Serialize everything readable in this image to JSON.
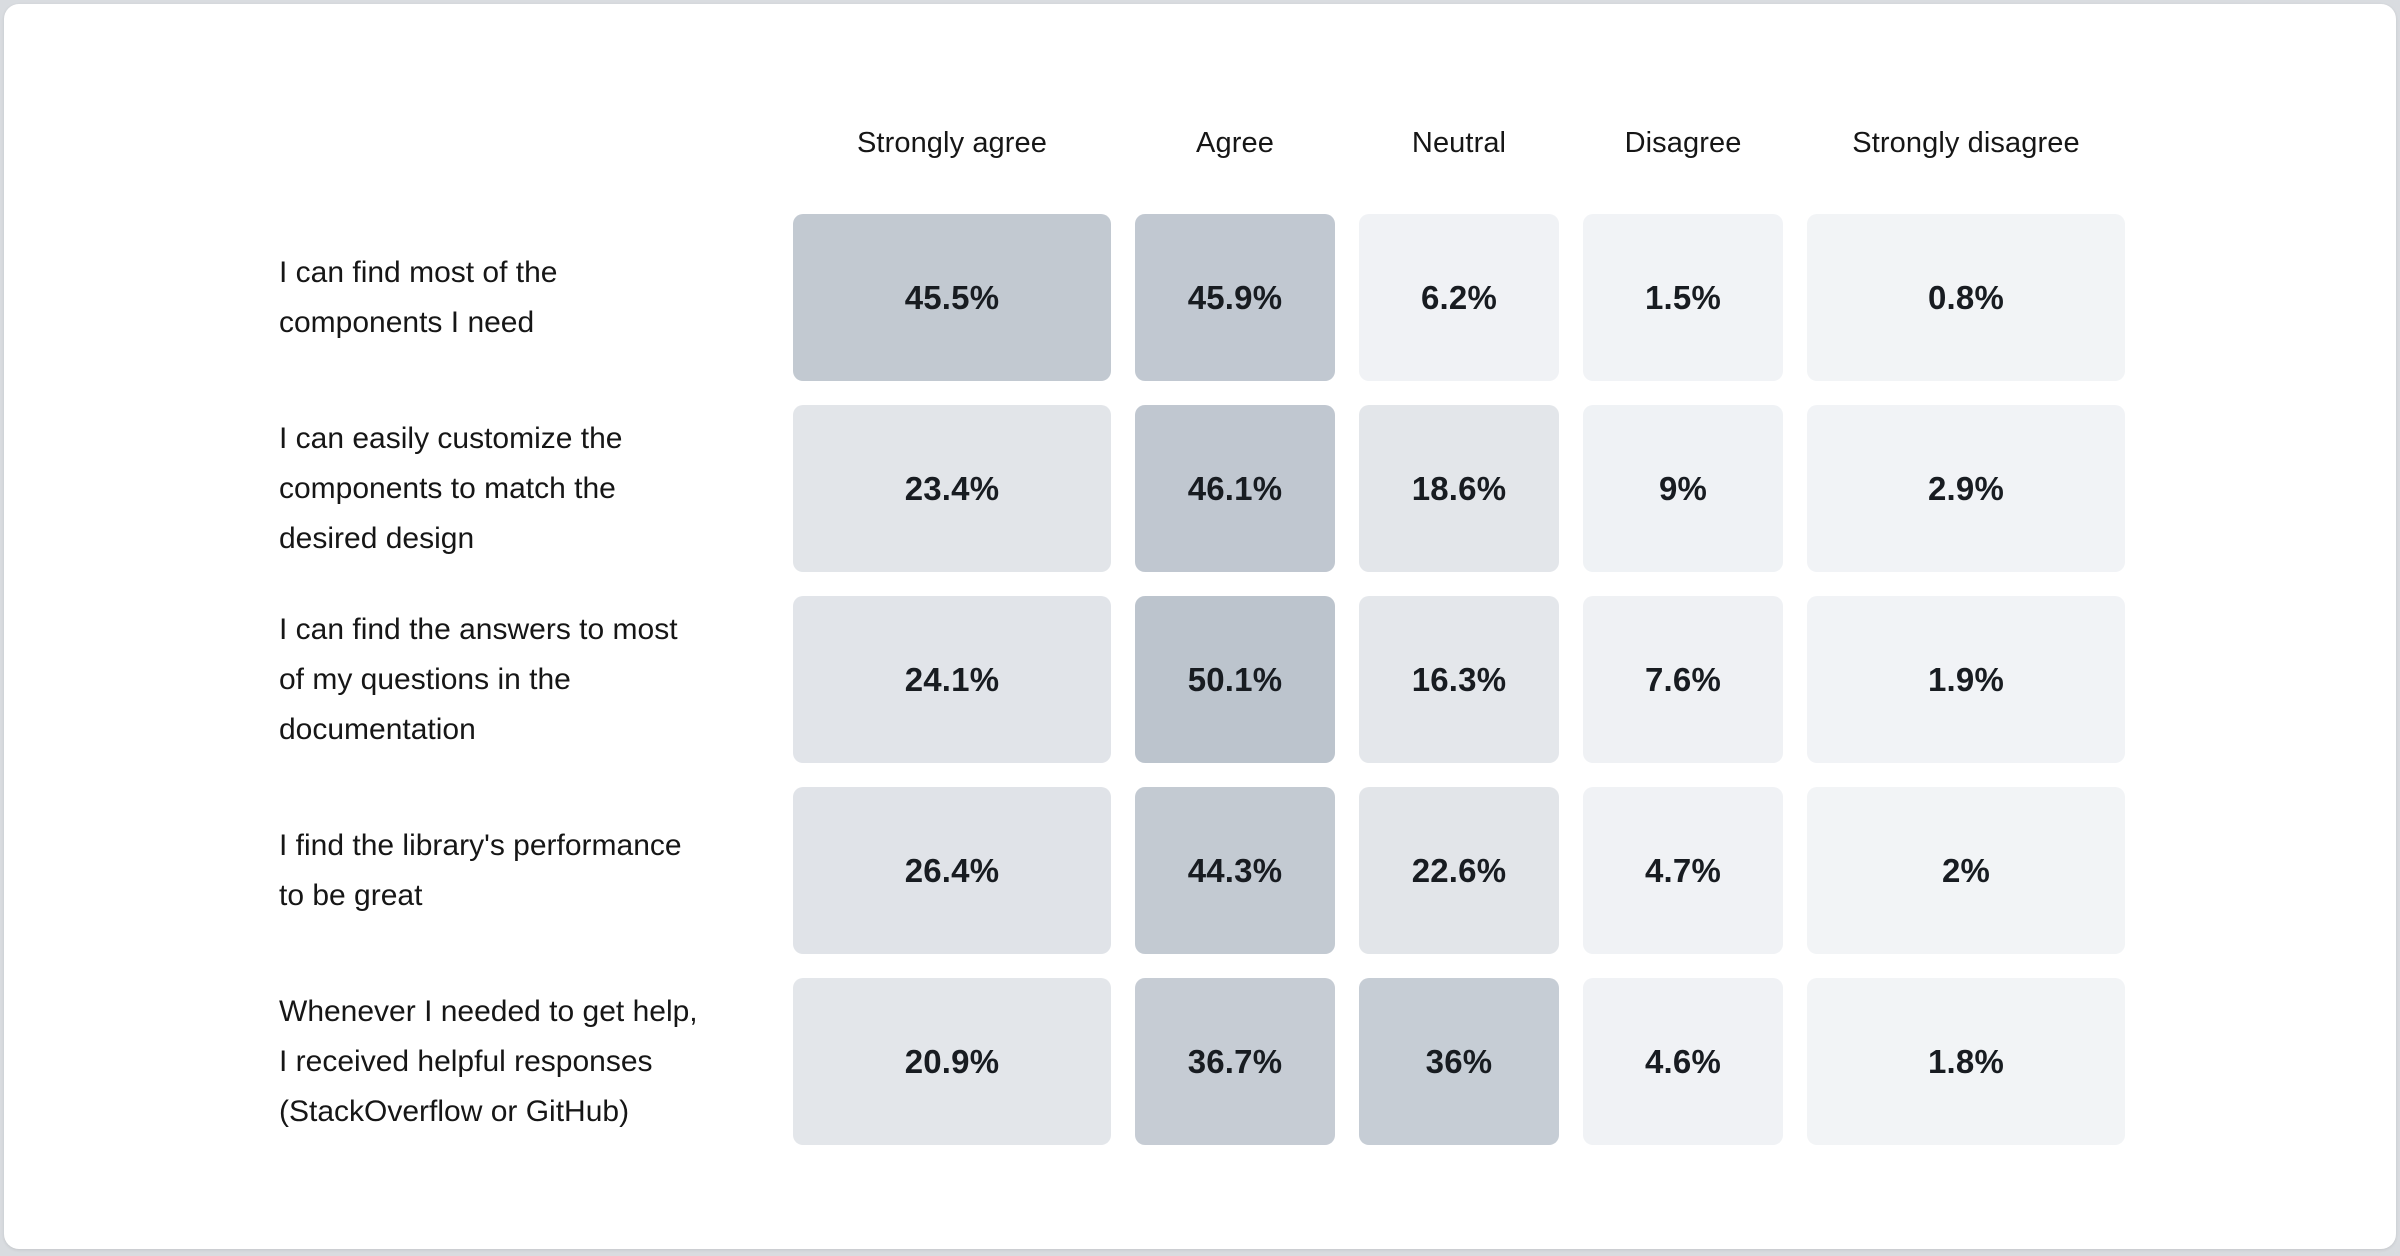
{
  "page": {
    "background_color": "#d9dce0",
    "card_color": "#ffffff",
    "text_color": "#161616"
  },
  "chart_data": {
    "type": "heatmap",
    "title": "",
    "legend_position": "none",
    "unit": "%",
    "color_scale": {
      "low": "#f2f4f6",
      "high": "#bcc4cd",
      "domain": [
        0,
        50
      ]
    },
    "columns": [
      "Strongly agree",
      "Agree",
      "Neutral",
      "Disagree",
      "Strongly disagree"
    ],
    "rows": [
      {
        "label": "I can find most of the\ncomponents I need",
        "cells": [
          {
            "value": 45.5,
            "display": "45.5%",
            "color": "#c2c9d1"
          },
          {
            "value": 45.9,
            "display": "45.9%",
            "color": "#c1c8d1"
          },
          {
            "value": 6.2,
            "display": "6.2%",
            "color": "#f0f2f5"
          },
          {
            "value": 1.5,
            "display": "1.5%",
            "color": "#f1f3f6"
          },
          {
            "value": 0.8,
            "display": "0.8%",
            "color": "#f2f4f6"
          }
        ]
      },
      {
        "label": "I can easily customize the\ncomponents to match the\ndesired design",
        "cells": [
          {
            "value": 23.4,
            "display": "23.4%",
            "color": "#e2e5e9"
          },
          {
            "value": 46.1,
            "display": "46.1%",
            "color": "#c0c7d0"
          },
          {
            "value": 18.6,
            "display": "18.6%",
            "color": "#e3e6ea"
          },
          {
            "value": 9,
            "display": "9%",
            "color": "#eff2f5"
          },
          {
            "value": 2.9,
            "display": "2.9%",
            "color": "#f1f3f6"
          }
        ]
      },
      {
        "label": "I can find the answers to most\nof my questions in the\ndocumentation",
        "cells": [
          {
            "value": 24.1,
            "display": "24.1%",
            "color": "#e1e4e9"
          },
          {
            "value": 50.1,
            "display": "50.1%",
            "color": "#bcc4cd"
          },
          {
            "value": 16.3,
            "display": "16.3%",
            "color": "#e4e7eb"
          },
          {
            "value": 7.6,
            "display": "7.6%",
            "color": "#eff1f4"
          },
          {
            "value": 1.9,
            "display": "1.9%",
            "color": "#f1f3f6"
          }
        ]
      },
      {
        "label": "I find the library's performance\nto be great",
        "cells": [
          {
            "value": 26.4,
            "display": "26.4%",
            "color": "#e0e3e8"
          },
          {
            "value": 44.3,
            "display": "44.3%",
            "color": "#c3cad2"
          },
          {
            "value": 22.6,
            "display": "22.6%",
            "color": "#e2e5e9"
          },
          {
            "value": 4.7,
            "display": "4.7%",
            "color": "#f0f2f5"
          },
          {
            "value": 2,
            "display": "2%",
            "color": "#f2f4f6"
          }
        ]
      },
      {
        "label": "Whenever I needed to get help,\nI received helpful responses\n(StackOverflow or GitHub)",
        "cells": [
          {
            "value": 20.9,
            "display": "20.9%",
            "color": "#e3e6ea"
          },
          {
            "value": 36.7,
            "display": "36.7%",
            "color": "#c6ccd4"
          },
          {
            "value": 36,
            "display": "36%",
            "color": "#c6cdd5"
          },
          {
            "value": 4.6,
            "display": "4.6%",
            "color": "#f0f2f5"
          },
          {
            "value": 1.8,
            "display": "1.8%",
            "color": "#f2f4f6"
          }
        ]
      }
    ]
  }
}
